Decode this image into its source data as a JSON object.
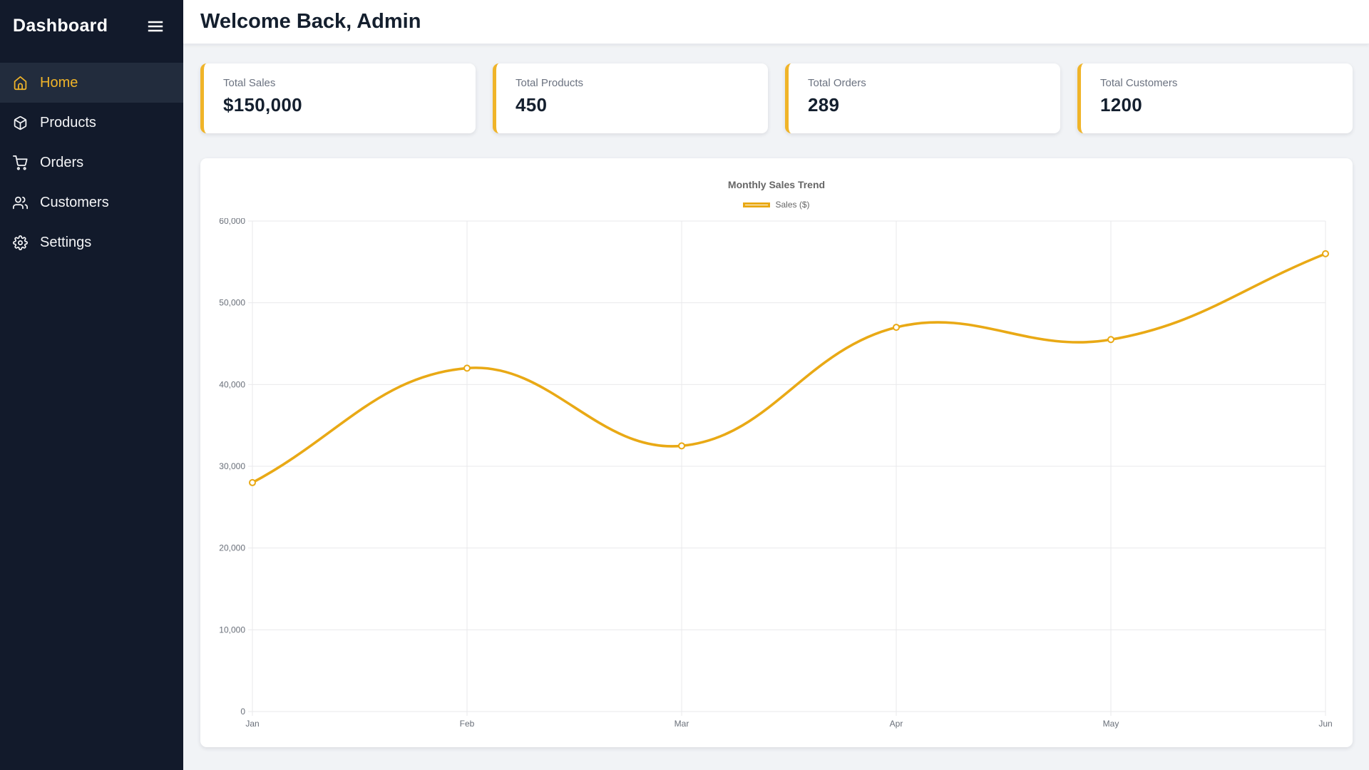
{
  "app": {
    "title": "Dashboard"
  },
  "sidebar": {
    "items": [
      {
        "label": "Home",
        "icon": "home-icon",
        "active": true
      },
      {
        "label": "Products",
        "icon": "package-icon",
        "active": false
      },
      {
        "label": "Orders",
        "icon": "cart-icon",
        "active": false
      },
      {
        "label": "Customers",
        "icon": "users-icon",
        "active": false
      },
      {
        "label": "Settings",
        "icon": "gear-icon",
        "active": false
      }
    ]
  },
  "header": {
    "title": "Welcome Back, Admin"
  },
  "stats": [
    {
      "label": "Total Sales",
      "value": "$150,000"
    },
    {
      "label": "Total Products",
      "value": "450"
    },
    {
      "label": "Total Orders",
      "value": "289"
    },
    {
      "label": "Total Customers",
      "value": "1200"
    }
  ],
  "chart_data": {
    "type": "line",
    "title": "Monthly Sales Trend",
    "legend_label": "Sales ($)",
    "legend_position": "top",
    "categories": [
      "Jan",
      "Feb",
      "Mar",
      "Apr",
      "May",
      "Jun"
    ],
    "series": [
      {
        "name": "Sales ($)",
        "values": [
          28000,
          42000,
          32500,
          47000,
          45500,
          56000
        ]
      }
    ],
    "ylim": [
      0,
      60000
    ],
    "ytick_step": 10000,
    "grid": true,
    "curve_tension": 0.4,
    "line_color": "#e9a915",
    "point_fill": "#ffffff"
  },
  "colors": {
    "accent": "#f0b429",
    "sidebar_bg": "#121a2b",
    "sidebar_active_bg": "#222c3d",
    "main_bg": "#f1f3f6",
    "card_bg": "#ffffff",
    "text_dark": "#141f2e",
    "text_muted": "#6b7280",
    "grid_color": "#e9e9eb",
    "tick_color": "#696f79"
  }
}
